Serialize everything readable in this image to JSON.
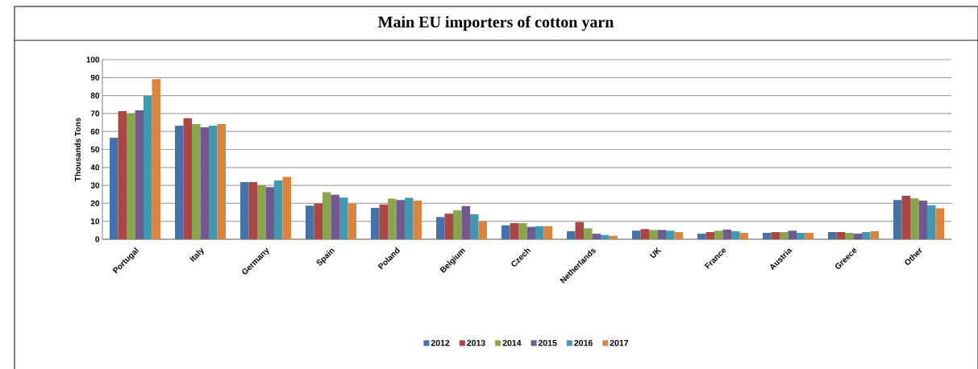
{
  "chart_data": {
    "type": "bar",
    "title": "Main EU importers of cotton yarn",
    "ylabel": "Thousands Tons",
    "categories": [
      "Portugal",
      "Italy",
      "Germany",
      "Spain",
      "Poland",
      "Belgium",
      "Czech",
      "Netherlands",
      "UK",
      "France",
      "Austria",
      "Greece",
      "Other"
    ],
    "series": [
      {
        "name": "2012",
        "color": "#4572a7",
        "values": [
          56.5,
          63.2,
          31.8,
          18.7,
          17.5,
          12.4,
          7.8,
          4.5,
          4.8,
          3.1,
          3.6,
          4.0,
          21.9
        ]
      },
      {
        "name": "2013",
        "color": "#aa4643",
        "values": [
          71.3,
          67.4,
          31.8,
          20.0,
          19.4,
          14.3,
          9.0,
          9.6,
          5.7,
          4.0,
          4.0,
          4.0,
          24.2
        ]
      },
      {
        "name": "2014",
        "color": "#89a54e",
        "values": [
          70.1,
          64.1,
          30.2,
          26.2,
          22.7,
          16.1,
          9.0,
          6.1,
          5.2,
          4.8,
          4.0,
          3.6,
          22.8
        ]
      },
      {
        "name": "2015",
        "color": "#71588f",
        "values": [
          71.7,
          62.3,
          29.0,
          24.8,
          21.9,
          18.5,
          6.9,
          3.1,
          5.2,
          5.4,
          4.8,
          3.1,
          21.5
        ]
      },
      {
        "name": "2016",
        "color": "#4198af",
        "values": [
          79.8,
          63.2,
          32.7,
          23.2,
          23.1,
          13.9,
          7.3,
          2.4,
          4.8,
          4.5,
          3.6,
          4.0,
          19.0
        ]
      },
      {
        "name": "2017",
        "color": "#db843d",
        "values": [
          89.1,
          64.1,
          34.8,
          20.0,
          21.5,
          9.9,
          7.3,
          1.9,
          4.0,
          3.6,
          3.6,
          4.5,
          17.3
        ]
      }
    ],
    "ylim": [
      0,
      100
    ],
    "yticks": [
      0,
      10,
      20,
      30,
      40,
      50,
      60,
      70,
      80,
      90,
      100
    ],
    "grid": "y",
    "legend": "bottom"
  }
}
